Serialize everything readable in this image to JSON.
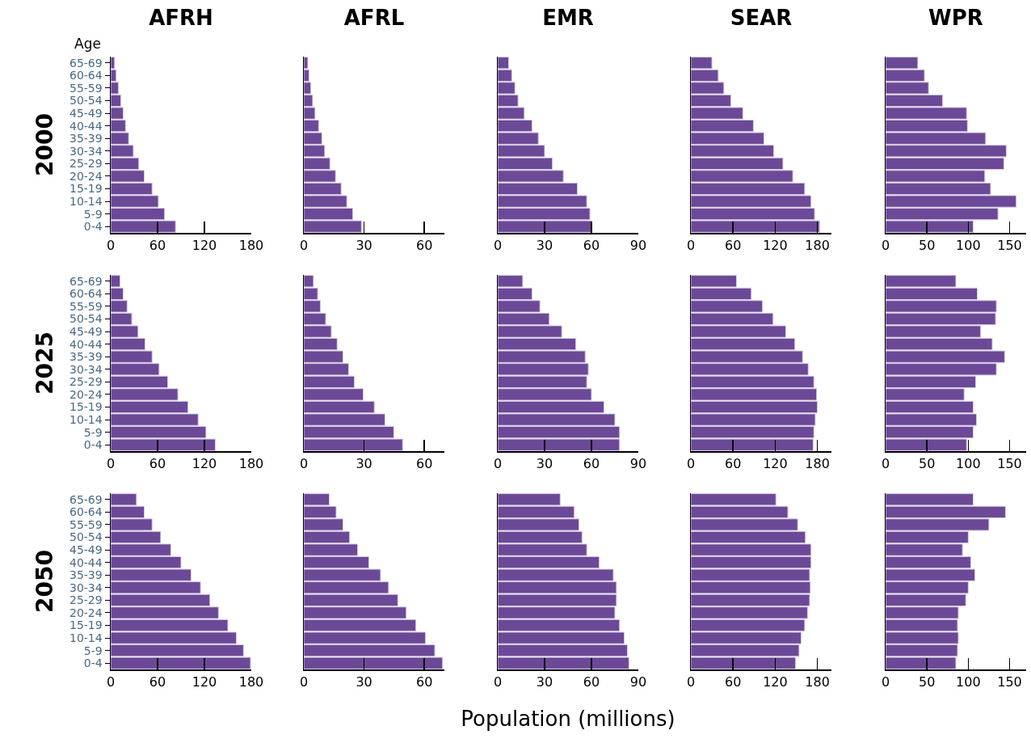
{
  "chart_data": [
    {
      "type": "bar",
      "orientation": "horizontal",
      "title": "AFRH",
      "ylabel": "2000",
      "annotations": [
        "Age"
      ],
      "categories": [
        "65-69",
        "60-64",
        "55-59",
        "50-54",
        "45-49",
        "40-44",
        "35-39",
        "30-34",
        "25-29",
        "20-24",
        "15-19",
        "10-14",
        "5-9",
        "0-4"
      ],
      "values": [
        5,
        7,
        10,
        13,
        16,
        19,
        23,
        29,
        36,
        43,
        53,
        61,
        69,
        83
      ],
      "color": "#6b4997",
      "xlim": [
        0,
        180
      ],
      "xticks": [
        0,
        60,
        120,
        180
      ]
    },
    {
      "type": "bar",
      "orientation": "horizontal",
      "title": "AFRL",
      "tick_labels": "x",
      "categories": [
        null,
        null,
        null,
        null,
        null,
        null,
        null,
        null,
        null,
        null,
        null,
        null,
        null,
        null
      ],
      "values": [
        2,
        2.6,
        3.5,
        4.4,
        5.6,
        7.4,
        9,
        10.4,
        13,
        15.8,
        18.6,
        21.4,
        24.4,
        28.7
      ],
      "color": "#6b4997",
      "xlim": [
        0,
        70
      ],
      "xticks": [
        0,
        30,
        60
      ]
    },
    {
      "type": "bar",
      "orientation": "horizontal",
      "title": "EMR",
      "tick_labels": "x",
      "categories": [
        null,
        null,
        null,
        null,
        null,
        null,
        null,
        null,
        null,
        null,
        null,
        null,
        null,
        null
      ],
      "values": [
        7,
        9,
        11,
        13,
        17,
        22,
        26,
        30,
        35,
        42,
        51,
        57,
        59,
        60
      ],
      "color": "#6b4997",
      "xlim": [
        0,
        90
      ],
      "xticks": [
        0,
        30,
        60,
        90
      ]
    },
    {
      "type": "bar",
      "orientation": "horizontal",
      "title": "SEAR",
      "tick_labels": "x",
      "categories": [
        null,
        null,
        null,
        null,
        null,
        null,
        null,
        null,
        null,
        null,
        null,
        null,
        null,
        null
      ],
      "values": [
        30,
        39,
        47,
        57,
        74,
        89,
        104,
        118,
        131,
        145,
        162,
        171,
        176,
        183
      ],
      "color": "#6b4997",
      "xlim": [
        0,
        200
      ],
      "xticks": [
        0,
        60,
        120,
        180
      ]
    },
    {
      "type": "bar",
      "orientation": "horizontal",
      "title": "WPR",
      "tick_labels": "x",
      "categories": [
        null,
        null,
        null,
        null,
        null,
        null,
        null,
        null,
        null,
        null,
        null,
        null,
        null,
        null
      ],
      "values": [
        39,
        47,
        52,
        69,
        98,
        99,
        121,
        146,
        143,
        120,
        127,
        158,
        136,
        106
      ],
      "color": "#6b4997",
      "xlim": [
        0,
        170
      ],
      "xticks": [
        0,
        50,
        100,
        150
      ]
    },
    {
      "type": "bar",
      "orientation": "horizontal",
      "ylabel": "2025",
      "categories": [
        "65-69",
        "60-64",
        "55-59",
        "50-54",
        "45-49",
        "40-44",
        "35-39",
        "30-34",
        "25-29",
        "20-24",
        "15-19",
        "10-14",
        "5-9",
        "0-4"
      ],
      "values": [
        12,
        16,
        21,
        27,
        35,
        44,
        53,
        62,
        73,
        86,
        99,
        112,
        122,
        134
      ],
      "color": "#6b4997",
      "xlim": [
        0,
        180
      ],
      "xticks": [
        0,
        60,
        120,
        180
      ]
    },
    {
      "type": "bar",
      "orientation": "horizontal",
      "tick_labels": "x",
      "categories": [
        null,
        null,
        null,
        null,
        null,
        null,
        null,
        null,
        null,
        null,
        null,
        null,
        null,
        null
      ],
      "values": [
        4.8,
        6.9,
        8.3,
        10.9,
        13.7,
        16.6,
        19.5,
        22.3,
        25.2,
        29.6,
        35.1,
        40.4,
        44.8,
        49.2
      ],
      "color": "#6b4997",
      "xlim": [
        0,
        70
      ],
      "xticks": [
        0,
        30,
        60
      ]
    },
    {
      "type": "bar",
      "orientation": "horizontal",
      "tick_labels": "x",
      "categories": [
        null,
        null,
        null,
        null,
        null,
        null,
        null,
        null,
        null,
        null,
        null,
        null,
        null,
        null
      ],
      "values": [
        16,
        22,
        27,
        33,
        41,
        50,
        56,
        58,
        57,
        60,
        68,
        75,
        78,
        78
      ],
      "color": "#6b4997",
      "xlim": [
        0,
        90
      ],
      "xticks": [
        0,
        30,
        60,
        90
      ]
    },
    {
      "type": "bar",
      "orientation": "horizontal",
      "tick_labels": "x",
      "categories": [
        null,
        null,
        null,
        null,
        null,
        null,
        null,
        null,
        null,
        null,
        null,
        null,
        null,
        null
      ],
      "values": [
        65,
        86,
        102,
        117,
        135,
        148,
        159,
        167,
        175,
        179,
        180,
        177,
        175,
        174
      ],
      "color": "#6b4997",
      "xlim": [
        0,
        200
      ],
      "xticks": [
        0,
        60,
        120,
        180
      ]
    },
    {
      "type": "bar",
      "orientation": "horizontal",
      "tick_labels": "x",
      "categories": [
        null,
        null,
        null,
        null,
        null,
        null,
        null,
        null,
        null,
        null,
        null,
        null,
        null,
        null
      ],
      "values": [
        85,
        111,
        134,
        133,
        115,
        129,
        144,
        134,
        109,
        95,
        106,
        110,
        106,
        98
      ],
      "color": "#6b4997",
      "xlim": [
        0,
        170
      ],
      "xticks": [
        0,
        50,
        100,
        150
      ]
    },
    {
      "type": "bar",
      "orientation": "horizontal",
      "ylabel": "2050",
      "categories": [
        "65-69",
        "60-64",
        "55-59",
        "50-54",
        "45-49",
        "40-44",
        "35-39",
        "30-34",
        "25-29",
        "20-24",
        "15-19",
        "10-14",
        "5-9",
        "0-4"
      ],
      "values": [
        33,
        43,
        53,
        64,
        77,
        90,
        103,
        115,
        127,
        138,
        150,
        161,
        170,
        179
      ],
      "color": "#6b4997",
      "xlim": [
        0,
        180
      ],
      "xticks": [
        0,
        60,
        120,
        180
      ]
    },
    {
      "type": "bar",
      "orientation": "horizontal",
      "tick_labels": "x",
      "categories": [
        null,
        null,
        null,
        null,
        null,
        null,
        null,
        null,
        null,
        null,
        null,
        null,
        null,
        null
      ],
      "values": [
        12.7,
        16.1,
        19.5,
        22.8,
        26.8,
        32.4,
        38.2,
        42.2,
        46.8,
        51,
        55.8,
        60.6,
        65.2,
        69.1
      ],
      "color": "#6b4997",
      "xlim": [
        0,
        70
      ],
      "xticks": [
        0,
        30,
        60
      ]
    },
    {
      "type": "bar",
      "orientation": "horizontal",
      "tick_labels": "x",
      "xlabel": "Population (millions)",
      "categories": [
        null,
        null,
        null,
        null,
        null,
        null,
        null,
        null,
        null,
        null,
        null,
        null,
        null,
        null
      ],
      "values": [
        40,
        49,
        52,
        54,
        57,
        65,
        74,
        76,
        76,
        75,
        78,
        81,
        83,
        84
      ],
      "color": "#6b4997",
      "xlim": [
        0,
        90
      ],
      "xticks": [
        0,
        30,
        60,
        90
      ]
    },
    {
      "type": "bar",
      "orientation": "horizontal",
      "tick_labels": "x",
      "categories": [
        null,
        null,
        null,
        null,
        null,
        null,
        null,
        null,
        null,
        null,
        null,
        null,
        null,
        null
      ],
      "values": [
        121,
        138,
        152,
        163,
        171,
        171,
        169,
        170,
        169,
        166,
        162,
        157,
        154,
        149
      ],
      "color": "#6b4997",
      "xlim": [
        0,
        200
      ],
      "xticks": [
        0,
        60,
        120,
        180
      ]
    },
    {
      "type": "bar",
      "orientation": "horizontal",
      "tick_labels": "x",
      "categories": [
        null,
        null,
        null,
        null,
        null,
        null,
        null,
        null,
        null,
        null,
        null,
        null,
        null,
        null
      ],
      "values": [
        106,
        145,
        125,
        100,
        93,
        103,
        108,
        100,
        97,
        88,
        87,
        88,
        87,
        85
      ],
      "color": "#6b4997",
      "xlim": [
        0,
        170
      ],
      "xticks": [
        0,
        50,
        100,
        150
      ]
    }
  ]
}
